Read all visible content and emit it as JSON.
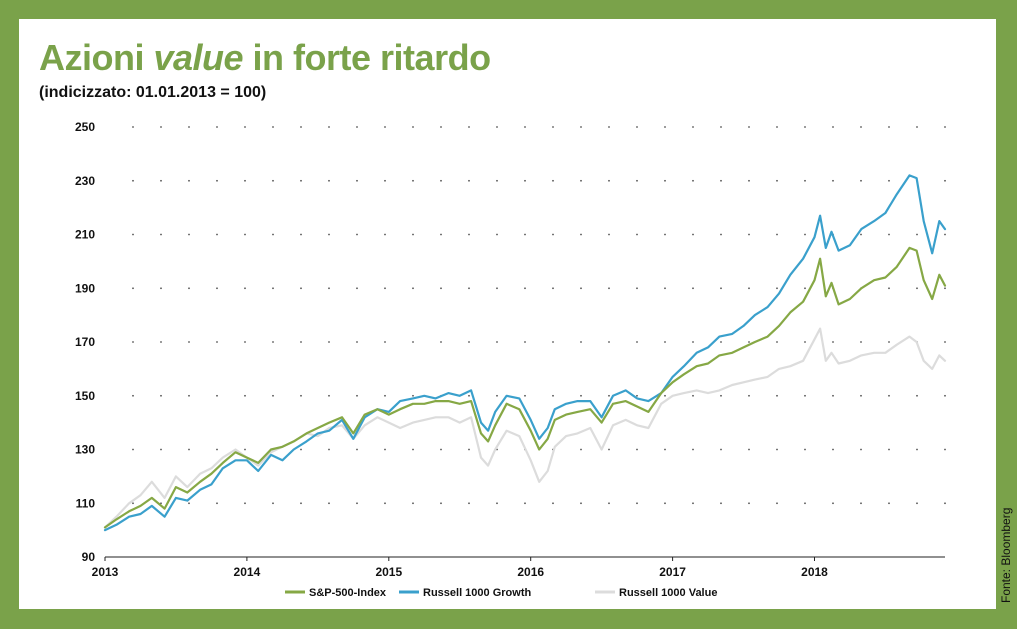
{
  "header": {
    "title_part1": "Azioni ",
    "title_part2": "value",
    "title_part3": " in forte ritardo",
    "subtitle": "(indicizzato: 01.01.2013 = 100)"
  },
  "source": "Fonte: Bloomberg",
  "colors": {
    "frame": "#7aa24a",
    "title": "#7aa24a",
    "sp500": "#86a845",
    "growth": "#3aa0cc",
    "value": "#dcdcdc"
  },
  "chart_data": {
    "type": "line",
    "xlim": [
      2013,
      2018.92
    ],
    "ylim": [
      90,
      250
    ],
    "x_ticks": [
      2013,
      2014,
      2015,
      2016,
      2017,
      2018
    ],
    "x_tick_labels": [
      "2013",
      "2014",
      "2015",
      "2016",
      "2017",
      "2018"
    ],
    "y_ticks": [
      90,
      110,
      130,
      150,
      170,
      190,
      210,
      230,
      250
    ],
    "y_tick_labels": [
      "90",
      "110",
      "130",
      "150",
      "170",
      "190",
      "210",
      "230",
      "250"
    ],
    "grid": "dotted",
    "legend_position": "bottom",
    "series": [
      {
        "name": "Russell 1000 Value",
        "color": "#dcdcdc",
        "points": [
          [
            2013.0,
            101
          ],
          [
            2013.08,
            105
          ],
          [
            2013.17,
            110
          ],
          [
            2013.25,
            113
          ],
          [
            2013.33,
            118
          ],
          [
            2013.42,
            112
          ],
          [
            2013.5,
            120
          ],
          [
            2013.58,
            116
          ],
          [
            2013.67,
            121
          ],
          [
            2013.75,
            123
          ],
          [
            2013.83,
            127
          ],
          [
            2013.92,
            130
          ],
          [
            2014.0,
            127
          ],
          [
            2014.08,
            124
          ],
          [
            2014.17,
            129
          ],
          [
            2014.25,
            131
          ],
          [
            2014.33,
            133
          ],
          [
            2014.42,
            136
          ],
          [
            2014.5,
            135
          ],
          [
            2014.58,
            138
          ],
          [
            2014.67,
            139
          ],
          [
            2014.75,
            134
          ],
          [
            2014.83,
            139
          ],
          [
            2014.92,
            142
          ],
          [
            2015.0,
            140
          ],
          [
            2015.08,
            138
          ],
          [
            2015.17,
            140
          ],
          [
            2015.25,
            141
          ],
          [
            2015.33,
            142
          ],
          [
            2015.42,
            142
          ],
          [
            2015.5,
            140
          ],
          [
            2015.58,
            142
          ],
          [
            2015.65,
            127
          ],
          [
            2015.7,
            124
          ],
          [
            2015.75,
            130
          ],
          [
            2015.83,
            137
          ],
          [
            2015.92,
            135
          ],
          [
            2016.0,
            126
          ],
          [
            2016.06,
            118
          ],
          [
            2016.12,
            122
          ],
          [
            2016.17,
            131
          ],
          [
            2016.25,
            135
          ],
          [
            2016.33,
            136
          ],
          [
            2016.42,
            138
          ],
          [
            2016.5,
            130
          ],
          [
            2016.58,
            139
          ],
          [
            2016.67,
            141
          ],
          [
            2016.75,
            139
          ],
          [
            2016.83,
            138
          ],
          [
            2016.92,
            147
          ],
          [
            2017.0,
            150
          ],
          [
            2017.08,
            151
          ],
          [
            2017.17,
            152
          ],
          [
            2017.25,
            151
          ],
          [
            2017.33,
            152
          ],
          [
            2017.42,
            154
          ],
          [
            2017.5,
            155
          ],
          [
            2017.58,
            156
          ],
          [
            2017.67,
            157
          ],
          [
            2017.75,
            160
          ],
          [
            2017.83,
            161
          ],
          [
            2017.92,
            163
          ],
          [
            2018.0,
            171
          ],
          [
            2018.04,
            175
          ],
          [
            2018.08,
            163
          ],
          [
            2018.12,
            166
          ],
          [
            2018.17,
            162
          ],
          [
            2018.25,
            163
          ],
          [
            2018.33,
            165
          ],
          [
            2018.42,
            166
          ],
          [
            2018.5,
            166
          ],
          [
            2018.58,
            169
          ],
          [
            2018.67,
            172
          ],
          [
            2018.72,
            170
          ],
          [
            2018.77,
            163
          ],
          [
            2018.83,
            160
          ],
          [
            2018.88,
            165
          ],
          [
            2018.92,
            163
          ]
        ]
      },
      {
        "name": "Russell 1000 Growth",
        "color": "#3aa0cc",
        "points": [
          [
            2013.0,
            100
          ],
          [
            2013.08,
            102
          ],
          [
            2013.17,
            105
          ],
          [
            2013.25,
            106
          ],
          [
            2013.33,
            109
          ],
          [
            2013.42,
            105
          ],
          [
            2013.5,
            112
          ],
          [
            2013.58,
            111
          ],
          [
            2013.67,
            115
          ],
          [
            2013.75,
            117
          ],
          [
            2013.83,
            123
          ],
          [
            2013.92,
            126
          ],
          [
            2014.0,
            126
          ],
          [
            2014.08,
            122
          ],
          [
            2014.17,
            128
          ],
          [
            2014.25,
            126
          ],
          [
            2014.33,
            130
          ],
          [
            2014.42,
            133
          ],
          [
            2014.5,
            136
          ],
          [
            2014.58,
            137
          ],
          [
            2014.67,
            141
          ],
          [
            2014.75,
            134
          ],
          [
            2014.83,
            142
          ],
          [
            2014.92,
            145
          ],
          [
            2015.0,
            144
          ],
          [
            2015.08,
            148
          ],
          [
            2015.17,
            149
          ],
          [
            2015.25,
            150
          ],
          [
            2015.33,
            149
          ],
          [
            2015.42,
            151
          ],
          [
            2015.5,
            150
          ],
          [
            2015.58,
            152
          ],
          [
            2015.65,
            140
          ],
          [
            2015.7,
            137
          ],
          [
            2015.75,
            144
          ],
          [
            2015.83,
            150
          ],
          [
            2015.92,
            149
          ],
          [
            2016.0,
            141
          ],
          [
            2016.06,
            134
          ],
          [
            2016.12,
            138
          ],
          [
            2016.17,
            145
          ],
          [
            2016.25,
            147
          ],
          [
            2016.33,
            148
          ],
          [
            2016.42,
            148
          ],
          [
            2016.5,
            142
          ],
          [
            2016.58,
            150
          ],
          [
            2016.67,
            152
          ],
          [
            2016.75,
            149
          ],
          [
            2016.83,
            148
          ],
          [
            2016.92,
            151
          ],
          [
            2017.0,
            157
          ],
          [
            2017.08,
            161
          ],
          [
            2017.17,
            166
          ],
          [
            2017.25,
            168
          ],
          [
            2017.33,
            172
          ],
          [
            2017.42,
            173
          ],
          [
            2017.5,
            176
          ],
          [
            2017.58,
            180
          ],
          [
            2017.67,
            183
          ],
          [
            2017.75,
            188
          ],
          [
            2017.83,
            195
          ],
          [
            2017.92,
            201
          ],
          [
            2018.0,
            209
          ],
          [
            2018.04,
            217
          ],
          [
            2018.08,
            205
          ],
          [
            2018.12,
            211
          ],
          [
            2018.17,
            204
          ],
          [
            2018.25,
            206
          ],
          [
            2018.33,
            212
          ],
          [
            2018.42,
            215
          ],
          [
            2018.5,
            218
          ],
          [
            2018.58,
            225
          ],
          [
            2018.67,
            232
          ],
          [
            2018.72,
            231
          ],
          [
            2018.77,
            215
          ],
          [
            2018.83,
            203
          ],
          [
            2018.88,
            215
          ],
          [
            2018.92,
            212
          ]
        ]
      },
      {
        "name": "S&P-500-Index",
        "color": "#86a845",
        "points": [
          [
            2013.0,
            101
          ],
          [
            2013.08,
            104
          ],
          [
            2013.17,
            107
          ],
          [
            2013.25,
            109
          ],
          [
            2013.33,
            112
          ],
          [
            2013.42,
            108
          ],
          [
            2013.5,
            116
          ],
          [
            2013.58,
            114
          ],
          [
            2013.67,
            118
          ],
          [
            2013.75,
            121
          ],
          [
            2013.83,
            125
          ],
          [
            2013.92,
            129
          ],
          [
            2014.0,
            127
          ],
          [
            2014.08,
            125
          ],
          [
            2014.17,
            130
          ],
          [
            2014.25,
            131
          ],
          [
            2014.33,
            133
          ],
          [
            2014.42,
            136
          ],
          [
            2014.5,
            138
          ],
          [
            2014.58,
            140
          ],
          [
            2014.67,
            142
          ],
          [
            2014.75,
            136
          ],
          [
            2014.83,
            143
          ],
          [
            2014.92,
            145
          ],
          [
            2015.0,
            143
          ],
          [
            2015.08,
            145
          ],
          [
            2015.17,
            147
          ],
          [
            2015.25,
            147
          ],
          [
            2015.33,
            148
          ],
          [
            2015.42,
            148
          ],
          [
            2015.5,
            147
          ],
          [
            2015.58,
            148
          ],
          [
            2015.65,
            136
          ],
          [
            2015.7,
            133
          ],
          [
            2015.75,
            139
          ],
          [
            2015.83,
            147
          ],
          [
            2015.92,
            145
          ],
          [
            2016.0,
            137
          ],
          [
            2016.06,
            130
          ],
          [
            2016.12,
            134
          ],
          [
            2016.17,
            141
          ],
          [
            2016.25,
            143
          ],
          [
            2016.33,
            144
          ],
          [
            2016.42,
            145
          ],
          [
            2016.5,
            140
          ],
          [
            2016.58,
            147
          ],
          [
            2016.67,
            148
          ],
          [
            2016.75,
            146
          ],
          [
            2016.83,
            144
          ],
          [
            2016.92,
            151
          ],
          [
            2017.0,
            155
          ],
          [
            2017.08,
            158
          ],
          [
            2017.17,
            161
          ],
          [
            2017.25,
            162
          ],
          [
            2017.33,
            165
          ],
          [
            2017.42,
            166
          ],
          [
            2017.5,
            168
          ],
          [
            2017.58,
            170
          ],
          [
            2017.67,
            172
          ],
          [
            2017.75,
            176
          ],
          [
            2017.83,
            181
          ],
          [
            2017.92,
            185
          ],
          [
            2018.0,
            193
          ],
          [
            2018.04,
            201
          ],
          [
            2018.08,
            187
          ],
          [
            2018.12,
            192
          ],
          [
            2018.17,
            184
          ],
          [
            2018.25,
            186
          ],
          [
            2018.33,
            190
          ],
          [
            2018.42,
            193
          ],
          [
            2018.5,
            194
          ],
          [
            2018.58,
            198
          ],
          [
            2018.67,
            205
          ],
          [
            2018.72,
            204
          ],
          [
            2018.77,
            193
          ],
          [
            2018.83,
            186
          ],
          [
            2018.88,
            195
          ],
          [
            2018.92,
            191
          ]
        ]
      }
    ]
  }
}
